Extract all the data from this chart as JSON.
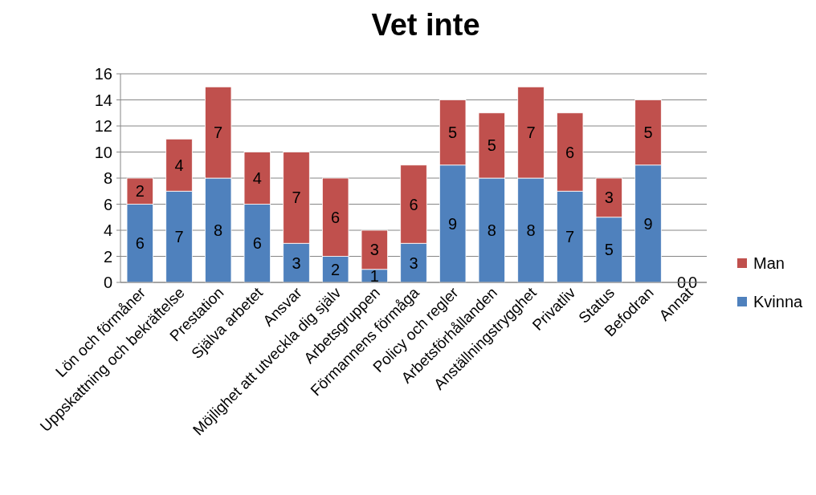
{
  "chart_data": {
    "type": "bar",
    "title": "Vet inte",
    "stacked": true,
    "categories": [
      "Lön och förmåner",
      "Uppskattning och bekräftelse",
      "Prestation",
      "Själva arbetet",
      "Ansvar",
      "Möjlighet att utveckla dig själv",
      "Arbetsgruppen",
      "Förmannens förmåga",
      "Policy och regler",
      "Arbetsförhållanden",
      "Anställningstrygghet",
      "Privatliv",
      "Status",
      "Befodran",
      "Annat"
    ],
    "series": [
      {
        "name": "Kvinna",
        "color": "#4f81bd",
        "values": [
          6,
          7,
          8,
          6,
          3,
          2,
          1,
          3,
          9,
          8,
          8,
          7,
          5,
          9,
          0
        ]
      },
      {
        "name": "Man",
        "color": "#c0504d",
        "values": [
          2,
          4,
          7,
          4,
          7,
          6,
          3,
          6,
          5,
          5,
          7,
          6,
          3,
          5,
          0
        ]
      }
    ],
    "ylim": [
      0,
      16
    ],
    "yticks": [
      0,
      2,
      4,
      6,
      8,
      10,
      12,
      14,
      16
    ],
    "grid": "y",
    "legend": "right",
    "data_labels": true
  }
}
